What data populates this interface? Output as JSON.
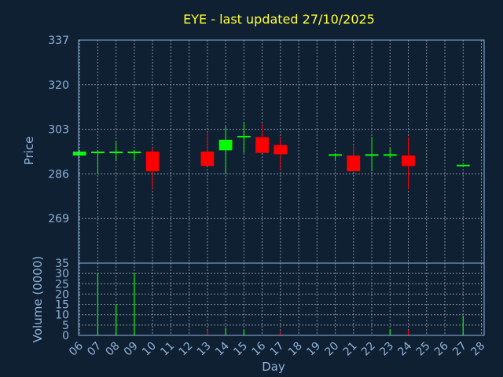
{
  "chart_data": {
    "type": "candlestick",
    "title": "EYE - last updated 27/10/2025",
    "xlabel": "Day",
    "x_tick_labels": [
      "06",
      "07",
      "08",
      "09",
      "10",
      "11",
      "12",
      "13",
      "14",
      "15",
      "16",
      "17",
      "18",
      "19",
      "20",
      "21",
      "22",
      "23",
      "24",
      "25",
      "26",
      "27",
      "28"
    ],
    "price_panel": {
      "ylabel": "Price",
      "ylim": [
        252,
        337
      ],
      "y_ticks": [
        337,
        320,
        303,
        286,
        269
      ],
      "candles": [
        {
          "day": "06",
          "open": 293,
          "close": 294.5,
          "high": 295,
          "low": 293
        },
        {
          "day": "07",
          "open": 294,
          "close": 294.5,
          "high": 295,
          "low": 286
        },
        {
          "day": "08",
          "open": 294,
          "close": 294.5,
          "high": 298.5,
          "low": 291
        },
        {
          "day": "09",
          "open": 294,
          "close": 294.5,
          "high": 295,
          "low": 291
        },
        {
          "day": "10",
          "open": 294.5,
          "close": 287,
          "high": 296,
          "low": 280
        },
        {
          "day": "13",
          "open": 294.5,
          "close": 289,
          "high": 301.5,
          "low": 289
        },
        {
          "day": "14",
          "open": 295,
          "close": 299,
          "high": 304,
          "low": 286
        },
        {
          "day": "15",
          "open": 300,
          "close": 300.5,
          "high": 305.5,
          "low": 294
        },
        {
          "day": "16",
          "open": 300,
          "close": 294,
          "high": 305,
          "low": 294
        },
        {
          "day": "17",
          "open": 297,
          "close": 293.5,
          "high": 300,
          "low": 287.5
        },
        {
          "day": "20",
          "open": 293,
          "close": 293.5,
          "high": 293.5,
          "low": 291.5
        },
        {
          "day": "21",
          "open": 293,
          "close": 287,
          "high": 297,
          "low": 287
        },
        {
          "day": "22",
          "open": 293,
          "close": 293.5,
          "high": 300,
          "low": 287
        },
        {
          "day": "23",
          "open": 293,
          "close": 293.5,
          "high": 296,
          "low": 292
        },
        {
          "day": "24",
          "open": 293,
          "close": 289,
          "high": 300,
          "low": 280
        },
        {
          "day": "27",
          "open": 289,
          "close": 289.5,
          "high": 289.5,
          "low": 289
        }
      ]
    },
    "volume_panel": {
      "ylabel": "Volume (0000)",
      "ylim": [
        0,
        35
      ],
      "y_ticks": [
        35,
        30,
        25,
        20,
        15,
        10,
        5,
        0
      ],
      "bars": [
        {
          "day": "07",
          "value": 30,
          "color": "#00ff00"
        },
        {
          "day": "08",
          "value": 15,
          "color": "#00ff00"
        },
        {
          "day": "09",
          "value": 30,
          "color": "#00ff00"
        },
        {
          "day": "13",
          "value": 2.5,
          "color": "#ff0000"
        },
        {
          "day": "14",
          "value": 3.5,
          "color": "#00ff00"
        },
        {
          "day": "15",
          "value": 2.5,
          "color": "#00ff00"
        },
        {
          "day": "17",
          "value": 2,
          "color": "#ff0000"
        },
        {
          "day": "23",
          "value": 3,
          "color": "#00ff00"
        },
        {
          "day": "24",
          "value": 2.5,
          "color": "#ff0000"
        },
        {
          "day": "27",
          "value": 9.5,
          "color": "#00ff00"
        }
      ]
    },
    "grid": true,
    "colors": {
      "background": "#0f2033",
      "plot_background": "#0f2033",
      "axis_text": "#8fb3d9",
      "title": "#ffff33",
      "grid": "#7f8fa3",
      "up": "#00ff00",
      "down": "#ff0000"
    }
  }
}
